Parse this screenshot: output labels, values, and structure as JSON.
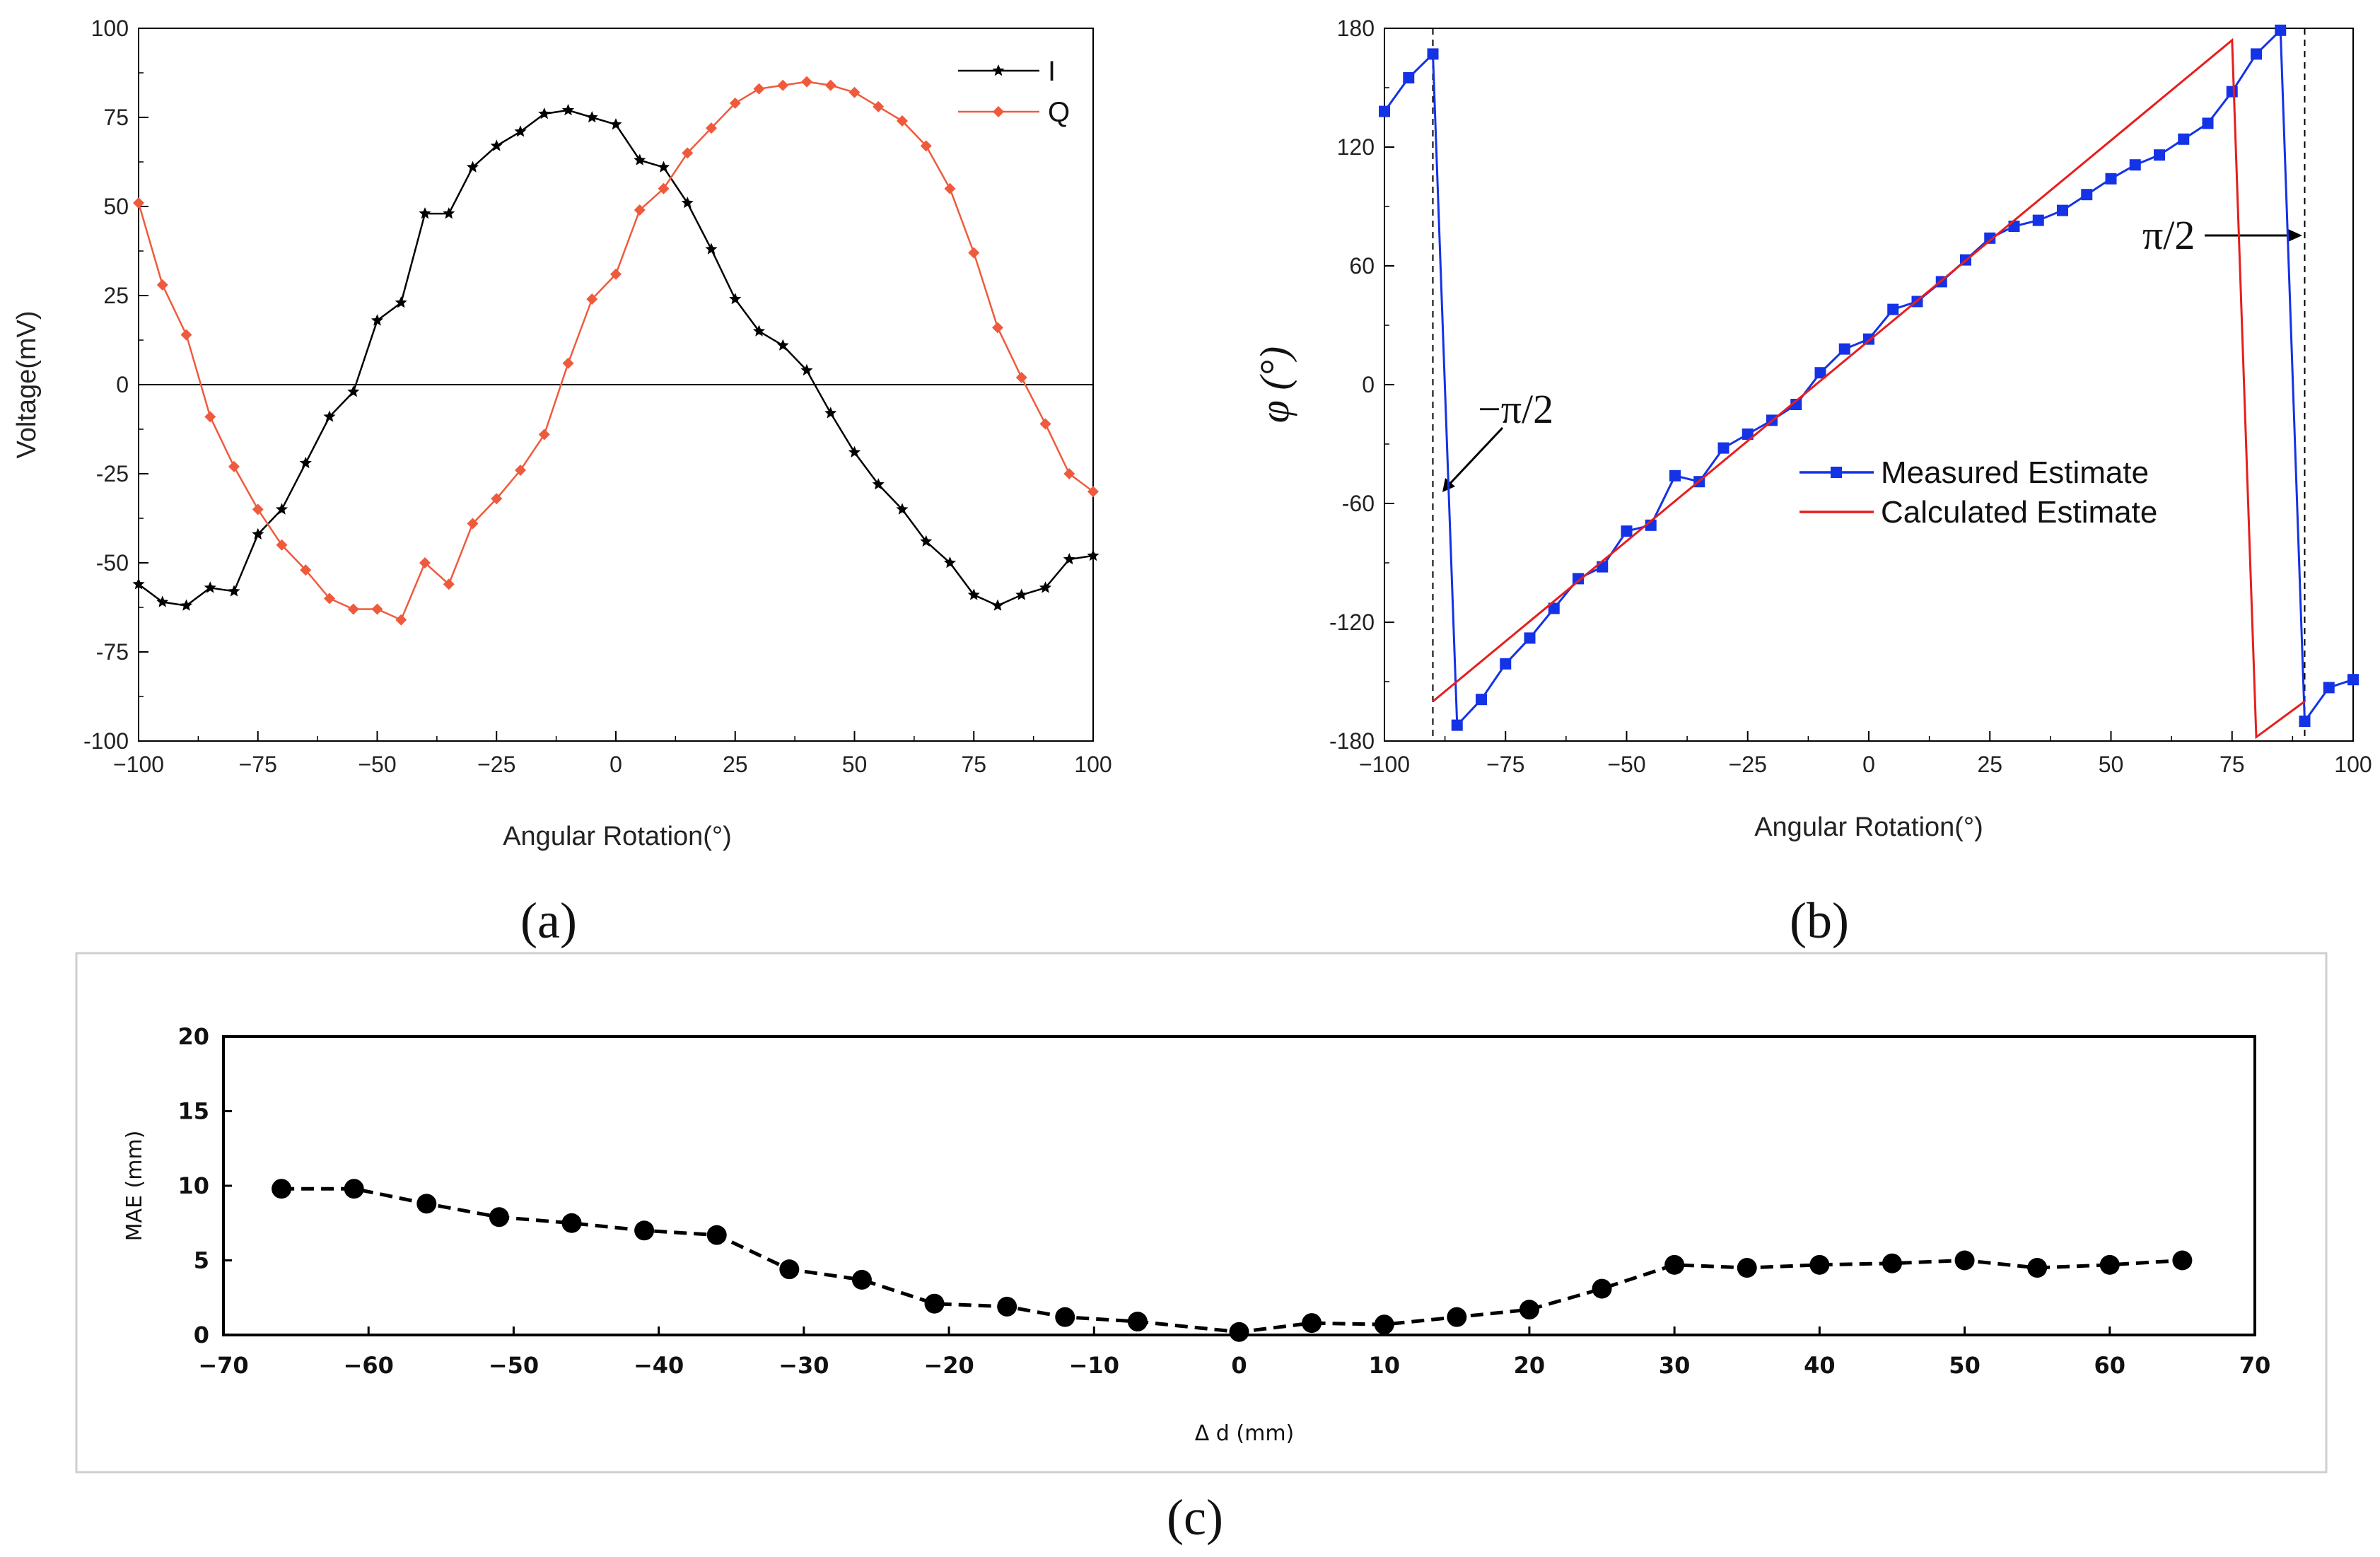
{
  "chart_data": [
    {
      "panel": "(a)",
      "type": "line",
      "xlabel": "Angular Rotation(°)",
      "ylabel": "Voltage(mV)",
      "xlim": [
        -100,
        100
      ],
      "ylim": [
        -100,
        100
      ],
      "xticks": [
        -100,
        -75,
        -50,
        -25,
        0,
        25,
        50,
        75,
        100
      ],
      "yticks": [
        -100,
        -75,
        -50,
        -25,
        0,
        25,
        50,
        75,
        100
      ],
      "zero_line": true,
      "legend_position": "top-right",
      "series": [
        {
          "name": "I",
          "color": "#000000",
          "marker": "star",
          "x": [
            -100,
            -95,
            -90,
            -85,
            -80,
            -75,
            -70,
            -65,
            -60,
            -55,
            -50,
            -45,
            -40,
            -35,
            -30,
            -25,
            -20,
            -15,
            -10,
            -5,
            0,
            5,
            10,
            15,
            20,
            25,
            30,
            35,
            40,
            45,
            50,
            55,
            60,
            65,
            70,
            75,
            80,
            85,
            90,
            95,
            100
          ],
          "y": [
            -56,
            -61,
            -62,
            -57,
            -58,
            -42,
            -35,
            -22,
            -9,
            -2,
            18,
            23,
            48,
            48,
            61,
            67,
            71,
            76,
            77,
            75,
            73,
            63,
            61,
            51,
            38,
            24,
            15,
            11,
            4,
            -8,
            -19,
            -28,
            -35,
            -44,
            -50,
            -59,
            -62,
            -59,
            -57,
            -49,
            -48
          ]
        },
        {
          "name": "Q",
          "color": "#f05a3c",
          "marker": "diamond",
          "x": [
            -100,
            -95,
            -90,
            -85,
            -80,
            -75,
            -70,
            -65,
            -60,
            -55,
            -50,
            -45,
            -40,
            -35,
            -30,
            -25,
            -20,
            -15,
            -10,
            -5,
            0,
            5,
            10,
            15,
            20,
            25,
            30,
            35,
            40,
            45,
            50,
            55,
            60,
            65,
            70,
            75,
            80,
            85,
            90,
            95,
            100
          ],
          "y": [
            51,
            28,
            14,
            -9,
            -23,
            -35,
            -45,
            -52,
            -60,
            -63,
            -63,
            -66,
            -50,
            -56,
            -39,
            -32,
            -24,
            -14,
            6,
            24,
            31,
            49,
            55,
            65,
            72,
            79,
            83,
            84,
            85,
            84,
            82,
            78,
            74,
            67,
            55,
            37,
            16,
            2,
            -11,
            -25,
            -30
          ]
        }
      ]
    },
    {
      "panel": "(b)",
      "type": "line",
      "xlabel": "Angular Rotation(°)",
      "ylabel": "φ (°)",
      "xlim": [
        -100,
        100
      ],
      "ylim": [
        -180,
        180
      ],
      "xticks": [
        -100,
        -75,
        -50,
        -25,
        0,
        25,
        50,
        75,
        100
      ],
      "yticks": [
        -180,
        -120,
        -60,
        0,
        60,
        120,
        180
      ],
      "vlines": [
        -90,
        90
      ],
      "annotations": [
        "−π/2",
        "π/2"
      ],
      "legend_position": "center-right",
      "series": [
        {
          "name": "Measured Estimate",
          "color": "#1432e6",
          "marker": "square",
          "x": [
            -100,
            -95,
            -90,
            -85,
            -80,
            -75,
            -70,
            -65,
            -60,
            -55,
            -50,
            -45,
            -40,
            -35,
            -30,
            -25,
            -20,
            -15,
            -10,
            -5,
            0,
            5,
            10,
            15,
            20,
            25,
            30,
            35,
            40,
            45,
            50,
            55,
            60,
            65,
            70,
            75,
            80,
            85,
            90,
            95,
            100
          ],
          "y": [
            138,
            155,
            167,
            -172,
            -159,
            -141,
            -128,
            -113,
            -98,
            -92,
            -74,
            -71,
            -46,
            -49,
            -32,
            -25,
            -18,
            -10,
            6,
            18,
            23,
            38,
            42,
            52,
            63,
            74,
            80,
            83,
            88,
            96,
            104,
            111,
            116,
            124,
            132,
            148,
            167,
            179,
            -170,
            -153,
            -149
          ]
        },
        {
          "name": "Calculated Estimate",
          "color": "#e61e1e",
          "marker": "none",
          "x": [
            -90,
            75,
            80,
            90
          ],
          "y": [
            -160,
            174,
            -178,
            -160
          ]
        }
      ]
    },
    {
      "panel": "(c)",
      "type": "line",
      "xlabel": "Δ d (mm)",
      "ylabel": "MAE (mm)",
      "xlim": [
        -70,
        70
      ],
      "ylim": [
        0,
        20
      ],
      "xticks": [
        -70,
        -60,
        -50,
        -40,
        -30,
        -20,
        -10,
        0,
        10,
        20,
        30,
        40,
        50,
        60,
        70
      ],
      "yticks": [
        0,
        5,
        10,
        15,
        20
      ],
      "series": [
        {
          "name": "MAE",
          "color": "#000000",
          "marker": "circle",
          "line_style": "dashed",
          "x": [
            -66,
            -61,
            -56,
            -51,
            -46,
            -41,
            -36,
            -31,
            -26,
            -21,
            -16,
            -12,
            -7,
            0,
            5,
            10,
            15,
            20,
            25,
            30,
            35,
            40,
            45,
            50,
            55,
            60,
            65
          ],
          "y": [
            9.8,
            9.8,
            8.8,
            7.9,
            7.5,
            7.0,
            6.7,
            4.4,
            3.7,
            2.1,
            1.9,
            1.2,
            0.9,
            0.2,
            0.8,
            0.7,
            1.2,
            1.7,
            3.1,
            4.7,
            4.5,
            4.7,
            4.8,
            5.0,
            4.5,
            4.7,
            5.0
          ]
        }
      ]
    }
  ],
  "panel_labels": [
    "(a)",
    "(b)",
    "(c)"
  ]
}
